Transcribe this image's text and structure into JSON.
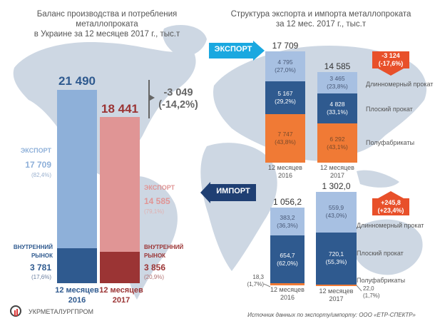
{
  "left": {
    "title_line1": "Баланс производства и потребления металлопроката",
    "title_line2": "в Украине за 12 месяцев 2017 г., тыс.т",
    "change_value": "-3 049",
    "change_pct": "(-14,2%)",
    "bars": [
      {
        "period_line1": "12 месяцев",
        "period_line2": "2016",
        "total": "21 490",
        "export_label": "ЭКСПОРТ",
        "export_value": "17 709",
        "export_pct": "(82,4%)",
        "domestic_label_1": "ВНУТРЕННИЙ",
        "domestic_label_2": "РЫНОК",
        "domestic_value": "3 781",
        "domestic_pct": "(17,6%)"
      },
      {
        "period_line1": "12 месяцев",
        "period_line2": "2017",
        "total": "18 441",
        "export_label": "ЭКСПОРТ",
        "export_value": "14 585",
        "export_pct": "(79,1%)",
        "domestic_label_1": "ВНУТРЕННИЙ",
        "domestic_label_2": "РЫНОК",
        "domestic_value": "3 856",
        "domestic_pct": "(20,9%)"
      }
    ]
  },
  "right": {
    "title_line1": "Структура экспорта и импорта металлопроката",
    "title_line2": "за 12 мес. 2017 г., тыс.т",
    "export_arrow": "ЭКСПОРТ",
    "import_arrow": "ИМПОРТ",
    "export_change_value": "-3 124",
    "export_change_pct": "(-17,6%)",
    "import_change_value": "+245,8",
    "import_change_pct": "(+23,4%)",
    "categories": [
      "Длинномерный прокат",
      "Плоский прокат",
      "Полуфабрикаты"
    ],
    "export_bars": [
      {
        "total": "17 709",
        "period_line1": "12 месяцев",
        "period_line2": "2016",
        "segments": [
          {
            "v": "4 795",
            "p": "(27,0%)"
          },
          {
            "v": "5 167",
            "p": "(29,2%)"
          },
          {
            "v": "7 747",
            "p": "(43,8%)"
          }
        ]
      },
      {
        "total": "14 585",
        "period_line1": "12 месяцев",
        "period_line2": "2017",
        "segments": [
          {
            "v": "3 465",
            "p": "(23,8%)"
          },
          {
            "v": "4 828",
            "p": "(33,1%)"
          },
          {
            "v": "6 292",
            "p": "(43,1%)"
          }
        ]
      }
    ],
    "import_bars": [
      {
        "total": "1 056,2",
        "period_line1": "12 месяцев",
        "period_line2": "2016",
        "segments": [
          {
            "v": "383,2",
            "p": "(36,3%)"
          },
          {
            "v": "654,7",
            "p": "(62,0%)"
          },
          {
            "v": "18,3",
            "p": "(1,7%)"
          }
        ]
      },
      {
        "total": "1 302,0",
        "period_line1": "12 месяцев",
        "period_line2": "2017",
        "segments": [
          {
            "v": "559,9",
            "p": "(43,0%)"
          },
          {
            "v": "720,1",
            "p": "(55,3%)"
          },
          {
            "v": "22,0",
            "p": "(1,7%)"
          }
        ]
      }
    ],
    "source_note": "Источник данных по экспорту/импорту:  ООО «ЕТР-СПЕКТР»"
  },
  "logo": {
    "name": "УКРМЕТАЛУРГПРОМ"
  },
  "colors": {
    "blue_light": "#8eb0d9",
    "blue_dark": "#2f5a8f",
    "red_light": "#e09595",
    "red_dark": "#9b3434",
    "long": "#a7c0e2",
    "flat": "#2f5a8f",
    "semi": "#f07a35",
    "export_arrow": "#1aa8e0",
    "import_arrow": "#1f3f73",
    "change_box": "#e8502a",
    "map": "#cdd7e3"
  },
  "chart_data": [
    {
      "type": "bar",
      "stacked": true,
      "title": "Баланс производства и потребления металлопроката в Украине за 12 месяцев 2017 г., тыс.т",
      "categories": [
        "12 месяцев 2016",
        "12 месяцев 2017"
      ],
      "series": [
        {
          "name": "Внутренний рынок",
          "values": [
            3781,
            3856
          ],
          "pct": [
            17.6,
            20.9
          ]
        },
        {
          "name": "Экспорт",
          "values": [
            17709,
            14585
          ],
          "pct": [
            82.4,
            79.1
          ]
        }
      ],
      "totals": [
        21490,
        18441
      ],
      "annotation": "-3 049 (-14,2%)",
      "unit": "тыс.т"
    },
    {
      "type": "bar",
      "stacked": true,
      "title": "Экспорт металлопроката, тыс.т",
      "categories": [
        "12 месяцев 2016",
        "12 месяцев 2017"
      ],
      "series": [
        {
          "name": "Полуфабрикаты",
          "values": [
            7747,
            6292
          ],
          "pct": [
            43.8,
            43.1
          ]
        },
        {
          "name": "Плоский прокат",
          "values": [
            5167,
            4828
          ],
          "pct": [
            29.2,
            33.1
          ]
        },
        {
          "name": "Длинномерный прокат",
          "values": [
            4795,
            3465
          ],
          "pct": [
            27.0,
            23.8
          ]
        }
      ],
      "totals": [
        17709,
        14585
      ],
      "annotation": "-3 124 (-17,6%)",
      "unit": "тыс.т"
    },
    {
      "type": "bar",
      "stacked": true,
      "title": "Импорт металлопроката, тыс.т",
      "categories": [
        "12 месяцев 2016",
        "12 месяцев 2017"
      ],
      "series": [
        {
          "name": "Полуфабрикаты",
          "values": [
            18.3,
            22.0
          ],
          "pct": [
            1.7,
            1.7
          ]
        },
        {
          "name": "Плоский прокат",
          "values": [
            654.7,
            720.1
          ],
          "pct": [
            62.0,
            55.3
          ]
        },
        {
          "name": "Длинномерный прокат",
          "values": [
            383.2,
            559.9
          ],
          "pct": [
            36.3,
            43.0
          ]
        }
      ],
      "totals": [
        1056.2,
        1302.0
      ],
      "annotation": "+245,8 (+23,4%)",
      "unit": "тыс.т"
    }
  ]
}
